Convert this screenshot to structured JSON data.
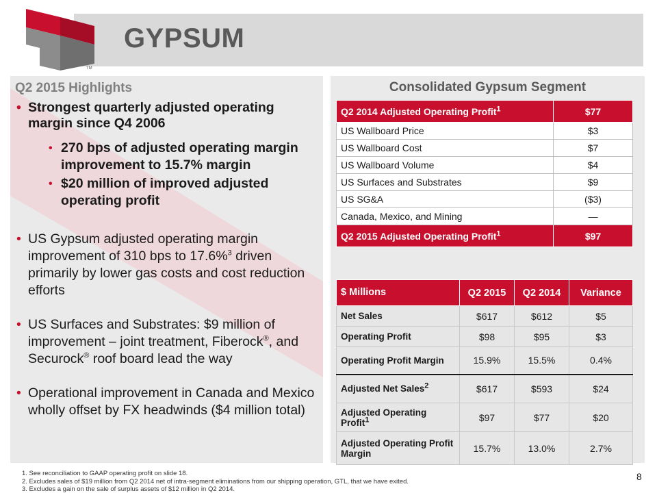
{
  "header": {
    "title": "GYPSUM",
    "logo_mark": "TM",
    "colors": {
      "brand_red": "#c8102e",
      "logo_gray": "#7f7f7f",
      "title_gray": "#595959"
    }
  },
  "highlights": {
    "title": "Q2 2015 Highlights",
    "items": [
      {
        "text": "Strongest quarterly adjusted operating margin since Q4 2006",
        "subitems": [
          "270 bps of adjusted operating margin improvement to 15.7% margin",
          "$20 million of improved adjusted operating profit"
        ]
      },
      {
        "text_a": "US Gypsum adjusted operating margin improvement of 310 bps to 17.6%",
        "sup": "3",
        "text_b": " driven primarily by lower gas costs and cost reduction efforts"
      },
      {
        "text_a": "US Surfaces and Substrates: $9 million of improvement – joint treatment, Fiberock",
        "sup_a": "®",
        "text_b": ", and Securock",
        "sup_b": "®",
        "text_c": " roof board lead the way"
      },
      {
        "text": "Operational improvement in Canada and Mexico wholly offset by FX headwinds ($4 million total)"
      }
    ]
  },
  "bridge": {
    "title": "Consolidated Gypsum Segment",
    "start": {
      "label": "Q2 2014 Adjusted Operating Profit",
      "sup": "1",
      "value": "$77"
    },
    "rows": [
      {
        "label": "US Wallboard Price",
        "value": "$3"
      },
      {
        "label": "US Wallboard Cost",
        "value": "$7"
      },
      {
        "label": "US Wallboard Volume",
        "value": "$4"
      },
      {
        "label": "US Surfaces and Substrates",
        "value": "$9"
      },
      {
        "label": "US SG&A",
        "value": "($3)"
      },
      {
        "label": "Canada, Mexico, and Mining",
        "value": "—"
      }
    ],
    "end": {
      "label": "Q2 2015 Adjusted Operating Profit",
      "sup": "1",
      "value": "$97"
    }
  },
  "financials": {
    "headers": [
      "$ Millions",
      "Q2 2015",
      "Q2 2014",
      "Variance"
    ],
    "rows": [
      {
        "label": "Net Sales",
        "sup": "",
        "values": [
          "$617",
          "$612",
          "$5"
        ]
      },
      {
        "label": "Operating Profit",
        "sup": "",
        "values": [
          "$98",
          "$95",
          "$3"
        ]
      },
      {
        "label": "Operating Profit Margin",
        "sup": "",
        "values": [
          "15.9%",
          "15.5%",
          "0.4%"
        ]
      },
      {
        "label": "Adjusted Net Sales",
        "sup": "2",
        "values": [
          "$617",
          "$593",
          "$24"
        ]
      },
      {
        "label": "Adjusted Operating Profit",
        "sup": "1",
        "values": [
          "$97",
          "$77",
          "$20"
        ]
      },
      {
        "label": "Adjusted Operating Profit Margin",
        "sup": "",
        "values": [
          "15.7%",
          "13.0%",
          "2.7%"
        ]
      }
    ]
  },
  "footnotes": [
    "1. See reconciliation to GAAP operating profit on slide 18.",
    "2. Excludes sales of $19 million from Q2 2014 net of intra-segment eliminations from our shipping operation, GTL, that we have exited.",
    "3. Excludes a gain on the sale of surplus assets of $12 million in Q2 2014."
  ],
  "page_number": "8"
}
